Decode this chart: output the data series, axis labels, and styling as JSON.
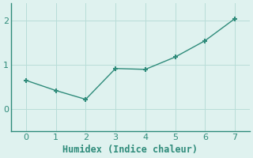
{
  "x": [
    0,
    1,
    2,
    3,
    4,
    5,
    6,
    7
  ],
  "y": [
    0.65,
    0.42,
    0.22,
    0.92,
    0.9,
    1.18,
    1.55,
    2.05
  ],
  "line_color": "#2e8b7a",
  "marker_color": "#2e8b7a",
  "background_color": "#dff2ef",
  "grid_color": "#b8ddd8",
  "spine_color": "#2e8b7a",
  "tick_color": "#2e8b7a",
  "label_color": "#2e8b7a",
  "xlabel": "Humidex (Indice chaleur)",
  "xlabel_fontsize": 8.5,
  "xlim": [
    -0.5,
    7.5
  ],
  "ylim": [
    -0.5,
    2.4
  ],
  "xticks": [
    0,
    1,
    2,
    3,
    4,
    5,
    6,
    7
  ],
  "yticks": [
    0,
    1,
    2
  ],
  "tick_fontsize": 8
}
